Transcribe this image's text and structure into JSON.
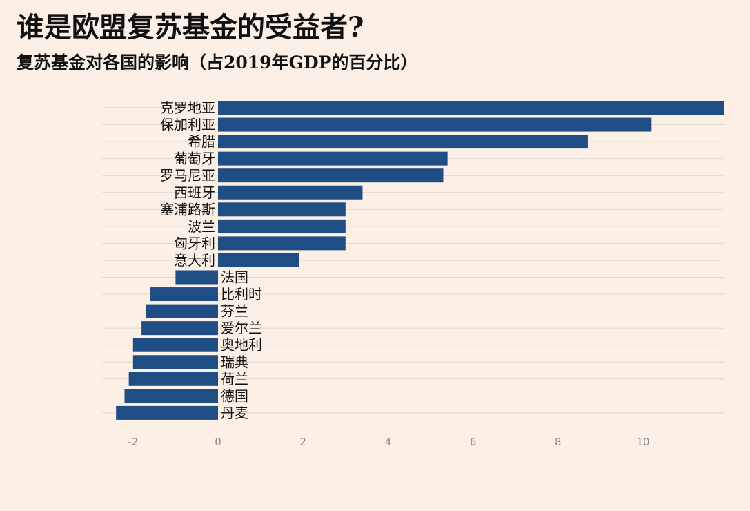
{
  "chart_title": "谁是欧盟复苏基金的受益者?",
  "chart_subtitle": "复苏基金对各国的影响（占2019年GDP的百分比）",
  "colors": {
    "background": "#fcf0e6",
    "bar": "#1f4e85",
    "tick_text": "#888888",
    "grid": "#e2d8cf"
  },
  "chart_data": {
    "type": "bar",
    "orientation": "horizontal",
    "title": "谁是欧盟复苏基金的受益者?",
    "subtitle": "复苏基金对各国的影响（占2019年GDP的百分比）",
    "xlabel": "",
    "ylabel": "",
    "xlim": [
      -2.5,
      12
    ],
    "xticks": [
      -2,
      0,
      2,
      4,
      6,
      8,
      10
    ],
    "xtick_labels": [
      "-2",
      "0",
      "2",
      "4",
      "6",
      "8",
      "10"
    ],
    "grid": true,
    "categories": [
      "克罗地亚",
      "保加利亚",
      "希腊",
      "葡萄牙",
      "罗马尼亚",
      "西班牙",
      "塞浦路斯",
      "波兰",
      "匈牙利",
      "意大利",
      "法国",
      "比利时",
      "芬兰",
      "爱尔兰",
      "奥地利",
      "瑞典",
      "荷兰",
      "德国",
      "丹麦"
    ],
    "values": [
      11.9,
      10.2,
      8.7,
      5.4,
      5.3,
      3.4,
      3.0,
      3.0,
      3.0,
      1.9,
      -1.0,
      -1.6,
      -1.7,
      -1.8,
      -2.0,
      -2.0,
      -2.1,
      -2.2,
      -2.4
    ]
  }
}
